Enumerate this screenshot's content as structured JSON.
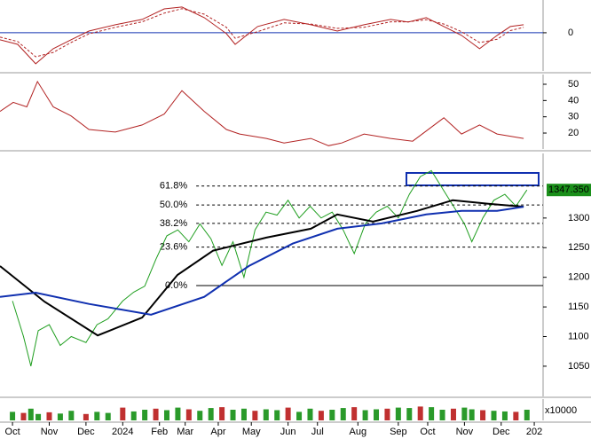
{
  "chart_data": [
    {
      "type": "line",
      "xlim": [
        -0.34,
        14.44
      ],
      "ylim": [
        -35,
        30
      ],
      "yticks": [
        0
      ],
      "zero_line": true,
      "series": [
        {
          "color": "#b22222",
          "dash": false,
          "x": [
            -0.34,
            0.14,
            0.63,
            1.11,
            1.59,
            2.08,
            2.8,
            3.53,
            4.13,
            4.61,
            5.22,
            5.82,
            6.06,
            6.67,
            7.39,
            8.12,
            8.84,
            9.57,
            10.29,
            10.77,
            11.26,
            11.74,
            12.22,
            12.71,
            13.19,
            13.55,
            13.91
          ],
          "values": [
            -6.5,
            -10.6,
            -28.4,
            -14.6,
            -6.5,
            1.6,
            7.3,
            12.2,
            21.9,
            23.6,
            13.8,
            -0.8,
            -10.6,
            5.7,
            12.2,
            7.3,
            1.6,
            7.3,
            12.2,
            9.8,
            13.8,
            5.7,
            -2.4,
            -14.6,
            -2.4,
            5.7,
            7.3
          ]
        },
        {
          "color": "#b22222",
          "dash": true,
          "x": [
            -0.34,
            0.14,
            0.63,
            1.11,
            1.59,
            2.08,
            2.8,
            3.53,
            4.13,
            4.61,
            5.22,
            5.82,
            6.06,
            6.67,
            7.39,
            8.12,
            8.84,
            9.57,
            10.29,
            10.77,
            11.26,
            11.74,
            12.22,
            12.71,
            13.19,
            13.55,
            13.91
          ],
          "values": [
            -4,
            -8,
            -22,
            -18,
            -9,
            -1,
            5,
            10,
            18,
            22,
            17,
            5,
            -5,
            1,
            9,
            8,
            4,
            5,
            10,
            10,
            12,
            8,
            1,
            -9,
            -6,
            2,
            5
          ]
        }
      ]
    },
    {
      "type": "line",
      "xlim": [
        -0.34,
        14.44
      ],
      "ylim": [
        10.2,
        56
      ],
      "yticks": [
        50,
        40,
        30,
        20
      ],
      "series": [
        {
          "color": "#b22222",
          "dash": false,
          "x": [
            -0.34,
            0.02,
            0.39,
            0.68,
            1.11,
            1.59,
            2.08,
            2.8,
            3.53,
            4.13,
            4.61,
            5.22,
            5.82,
            6.18,
            6.91,
            7.39,
            8.12,
            8.6,
            8.96,
            9.57,
            10.29,
            10.89,
            11.74,
            12.22,
            12.71,
            13.19,
            13.91
          ],
          "values": [
            33.3,
            38.9,
            36.1,
            51.7,
            36.1,
            30.6,
            22.2,
            20.6,
            25,
            31.7,
            46.1,
            33.3,
            22.2,
            19.4,
            16.7,
            13.9,
            16.7,
            12.2,
            13.9,
            19.4,
            16.7,
            15,
            29.4,
            19.4,
            25,
            19.4,
            16.7
          ]
        }
      ]
    },
    {
      "type": "line",
      "xlim": [
        -0.34,
        14.44
      ],
      "ylim": [
        999,
        1409
      ],
      "yticks": [
        1300,
        1250,
        1200,
        1150,
        1100,
        1050
      ],
      "last_value": {
        "value": 1347.35,
        "label": "1347.350"
      },
      "levels_from_x": 5.0,
      "levels": [
        {
          "label": "61.8%",
          "value": 1354
        },
        {
          "label": "50.0%",
          "value": 1322
        },
        {
          "label": "38.2%",
          "value": 1291
        },
        {
          "label": "23.6%",
          "value": 1251
        },
        {
          "label": "0.0%",
          "value": 1186
        }
      ],
      "series": [
        {
          "color": "#1f9e1f",
          "dash": false,
          "x": [
            0,
            0.3,
            0.5,
            0.7,
            1.0,
            1.3,
            1.6,
            2.0,
            2.3,
            2.6,
            3.0,
            3.3,
            3.6,
            3.9,
            4.2,
            4.5,
            4.8,
            5.1,
            5.4,
            5.7,
            6.0,
            6.3,
            6.6,
            6.9,
            7.2,
            7.5,
            7.8,
            8.1,
            8.4,
            8.7,
            9.0,
            9.3,
            9.6,
            9.9,
            10.2,
            10.5,
            10.8,
            11.1,
            11.4,
            11.7,
            12.0,
            12.3,
            12.5,
            12.8,
            13.1,
            13.4,
            13.7,
            14.0
          ],
          "values": [
            1160,
            1100,
            1050,
            1110,
            1120,
            1085,
            1100,
            1090,
            1120,
            1130,
            1160,
            1175,
            1185,
            1230,
            1270,
            1280,
            1260,
            1290,
            1265,
            1220,
            1260,
            1200,
            1280,
            1310,
            1305,
            1330,
            1300,
            1320,
            1300,
            1310,
            1280,
            1240,
            1290,
            1310,
            1320,
            1300,
            1340,
            1370,
            1380,
            1350,
            1320,
            1290,
            1260,
            1300,
            1330,
            1340,
            1320,
            1347.35
          ]
        },
        {
          "color": "#000000",
          "dash": false,
          "width": 2,
          "x": [
            -0.34,
            0.87,
            2.32,
            3.53,
            4.49,
            5.46,
            6.91,
            8.12,
            8.84,
            9.81,
            11.01,
            11.98,
            12.95,
            13.91
          ],
          "values": [
            1219,
            1159,
            1102,
            1132,
            1204,
            1245,
            1267,
            1282,
            1306,
            1294,
            1312,
            1330,
            1324,
            1319
          ]
        },
        {
          "color": "#1030b0",
          "dash": false,
          "width": 2,
          "x": [
            -0.34,
            0.63,
            2.08,
            3.77,
            5.22,
            6.43,
            7.63,
            8.84,
            10.05,
            11.26,
            12.22,
            13.19,
            13.91
          ],
          "values": [
            1167,
            1174,
            1155,
            1137,
            1167,
            1219,
            1257,
            1282,
            1291,
            1306,
            1312,
            1312,
            1319
          ]
        }
      ]
    },
    {
      "type": "bar",
      "xlim": [
        -0.34,
        14.44
      ],
      "ylim": [
        0,
        100
      ],
      "unit_label": "x10000",
      "color": "#2a9a2a",
      "x": [
        0,
        0.3,
        0.5,
        0.7,
        1.0,
        1.3,
        1.6,
        2.0,
        2.3,
        2.6,
        3.0,
        3.3,
        3.6,
        3.9,
        4.2,
        4.5,
        4.8,
        5.1,
        5.4,
        5.7,
        6.0,
        6.3,
        6.6,
        6.9,
        7.2,
        7.5,
        7.8,
        8.1,
        8.4,
        8.7,
        9.0,
        9.3,
        9.6,
        9.9,
        10.2,
        10.5,
        10.8,
        11.1,
        11.4,
        11.7,
        12.0,
        12.3,
        12.5,
        12.8,
        13.1,
        13.4,
        13.7,
        14.0
      ],
      "values": [
        40,
        35,
        55,
        30,
        38,
        32,
        45,
        30,
        40,
        35,
        60,
        42,
        50,
        55,
        48,
        60,
        52,
        45,
        58,
        62,
        50,
        55,
        45,
        52,
        48,
        60,
        40,
        55,
        45,
        50,
        58,
        62,
        48,
        52,
        55,
        60,
        58,
        65,
        62,
        50,
        55,
        60,
        52,
        48,
        45,
        42,
        40,
        50
      ],
      "xticks": [
        {
          "value": 0,
          "label": "Oct"
        },
        {
          "value": 1.0,
          "label": "Nov"
        },
        {
          "value": 2.0,
          "label": "Dec"
        },
        {
          "value": 3.0,
          "label": "2024"
        },
        {
          "value": 4.0,
          "label": "Feb"
        },
        {
          "value": 4.7,
          "label": "Mar"
        },
        {
          "value": 5.6,
          "label": "Apr"
        },
        {
          "value": 6.5,
          "label": "May"
        },
        {
          "value": 7.5,
          "label": "Jun"
        },
        {
          "value": 8.3,
          "label": "Jul"
        },
        {
          "value": 9.4,
          "label": "Aug"
        },
        {
          "value": 10.5,
          "label": "Sep"
        },
        {
          "value": 11.3,
          "label": "Oct"
        },
        {
          "value": 12.3,
          "label": "Nov"
        },
        {
          "value": 13.3,
          "label": "Dec"
        },
        {
          "value": 14.2,
          "label": "202"
        }
      ]
    }
  ]
}
